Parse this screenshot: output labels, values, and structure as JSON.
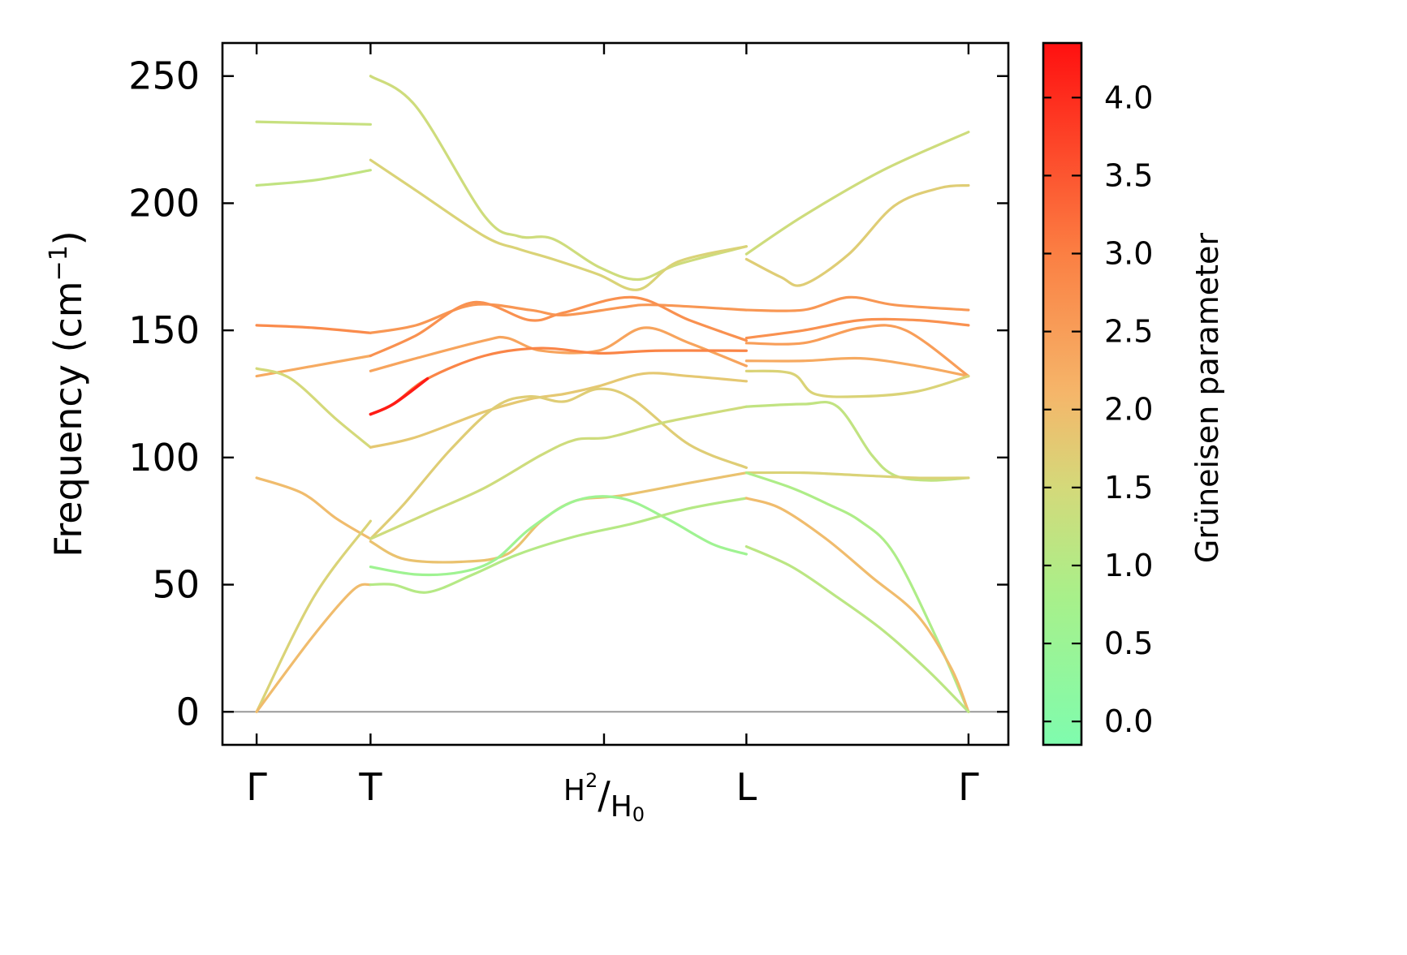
{
  "chart_data": {
    "type": "line",
    "title": "",
    "ylabel": "Frequency (cm",
    "ylabel_sup": "−1",
    "ylabel_close": ")",
    "ylim": [
      -13,
      263
    ],
    "yticks": [
      0,
      50,
      100,
      150,
      200,
      250
    ],
    "x_points": [
      {
        "pos": 0.0,
        "label": "Γ"
      },
      {
        "pos": 1.0,
        "label": "T"
      },
      {
        "pos": 3.05,
        "label": "H",
        "sub_upper": "2",
        "sep": "/",
        "label2": "H",
        "sub_lower": "0"
      },
      {
        "pos": 4.3,
        "label": "L"
      },
      {
        "pos": 6.25,
        "label": "Γ"
      }
    ],
    "xlim": [
      -0.3,
      6.6
    ],
    "zero_line_color": "#999999",
    "colorbar": {
      "label": "Grüneisen parameter",
      "range": [
        -0.15,
        4.35
      ],
      "ticks": [
        "0.0",
        "0.5",
        "1.0",
        "1.5",
        "2.0",
        "2.5",
        "3.0",
        "3.5",
        "4.0"
      ],
      "tick_values": [
        0.0,
        0.5,
        1.0,
        1.5,
        2.0,
        2.5,
        3.0,
        3.5,
        4.0
      ],
      "colors": [
        {
          "v": -0.15,
          "c": "#7ffcae"
        },
        {
          "v": 0.8,
          "c": "#a8f08a"
        },
        {
          "v": 1.5,
          "c": "#d4d97a"
        },
        {
          "v": 2.1,
          "c": "#f5b66a"
        },
        {
          "v": 3.0,
          "c": "#fb7f43"
        },
        {
          "v": 4.35,
          "c": "#ff1010"
        }
      ]
    },
    "series": [
      {
        "g": 1.3,
        "pts": [
          [
            0,
            232
          ],
          [
            1,
            231
          ]
        ]
      },
      {
        "g": 1.2,
        "pts": [
          [
            0,
            207
          ],
          [
            0.5,
            209
          ],
          [
            1,
            213
          ]
        ]
      },
      {
        "g": 2.8,
        "pts": [
          [
            0,
            152
          ],
          [
            0.5,
            151
          ],
          [
            1,
            149
          ]
        ]
      },
      {
        "g": 2.3,
        "pts": [
          [
            0,
            132
          ],
          [
            0.5,
            136
          ],
          [
            1,
            140
          ]
        ]
      },
      {
        "g": 1.5,
        "pts": [
          [
            0,
            135
          ],
          [
            0.3,
            131
          ],
          [
            0.7,
            115
          ],
          [
            1,
            104
          ]
        ]
      },
      {
        "g": 2.0,
        "pts": [
          [
            0,
            92
          ],
          [
            0.4,
            86
          ],
          [
            0.7,
            76
          ],
          [
            1,
            68
          ]
        ]
      },
      {
        "g": 1.6,
        "pts": [
          [
            0,
            0
          ],
          [
            0.5,
            45
          ],
          [
            1,
            75
          ]
        ]
      },
      {
        "g": 2.0,
        "pts": [
          [
            0,
            0
          ],
          [
            0.5,
            30
          ],
          [
            0.85,
            48
          ],
          [
            1,
            50
          ]
        ]
      },
      {
        "g": 1.4,
        "pts": [
          [
            1,
            250
          ],
          [
            1.4,
            238
          ],
          [
            2.0,
            195
          ],
          [
            2.3,
            187
          ],
          [
            2.6,
            186
          ],
          [
            3.0,
            175
          ],
          [
            3.35,
            170
          ],
          [
            3.7,
            176
          ],
          [
            4.3,
            183
          ]
        ]
      },
      {
        "g": 1.6,
        "pts": [
          [
            1,
            217
          ],
          [
            1.4,
            205
          ],
          [
            2.0,
            187
          ],
          [
            2.3,
            182
          ],
          [
            2.6,
            178
          ],
          [
            3.0,
            172
          ],
          [
            3.35,
            166
          ],
          [
            3.7,
            177
          ],
          [
            4.3,
            183
          ]
        ]
      },
      {
        "g": 2.6,
        "pts": [
          [
            1,
            149
          ],
          [
            1.4,
            152
          ],
          [
            1.9,
            160
          ],
          [
            2.4,
            158
          ],
          [
            2.7,
            156
          ],
          [
            3.2,
            159
          ],
          [
            3.5,
            160
          ],
          [
            4.3,
            158
          ]
        ]
      },
      {
        "g": 2.7,
        "pts": [
          [
            1,
            140
          ],
          [
            1.4,
            148
          ],
          [
            1.9,
            161
          ],
          [
            2.4,
            154
          ],
          [
            2.7,
            157
          ],
          [
            3.3,
            163
          ],
          [
            3.8,
            154
          ],
          [
            4.3,
            146
          ]
        ]
      },
      {
        "g": 2.4,
        "pts": [
          [
            1,
            134
          ],
          [
            1.4,
            139
          ],
          [
            2.0,
            146
          ],
          [
            2.2,
            147
          ],
          [
            2.5,
            142
          ],
          [
            3.0,
            142
          ],
          [
            3.4,
            151
          ],
          [
            3.8,
            145
          ],
          [
            4.3,
            136
          ]
        ]
      },
      {
        "g": 2.9,
        "pts": [
          [
            1,
            117
          ],
          [
            1.2,
            121
          ],
          [
            1.5,
            131
          ],
          [
            2.0,
            140
          ],
          [
            2.5,
            143
          ],
          [
            3.0,
            141
          ],
          [
            3.5,
            142
          ],
          [
            4.3,
            142
          ]
        ]
      },
      {
        "g": 1.8,
        "pts": [
          [
            1,
            104
          ],
          [
            1.4,
            108
          ],
          [
            2.0,
            118
          ],
          [
            2.4,
            123
          ],
          [
            2.7,
            125
          ],
          [
            3.0,
            128
          ],
          [
            3.4,
            133
          ],
          [
            3.8,
            132
          ],
          [
            4.3,
            130
          ]
        ]
      },
      {
        "g": 1.7,
        "pts": [
          [
            1,
            68
          ],
          [
            1.3,
            82
          ],
          [
            1.7,
            103
          ],
          [
            2.1,
            120
          ],
          [
            2.4,
            124
          ],
          [
            2.7,
            122
          ],
          [
            3.0,
            127
          ],
          [
            3.3,
            123
          ],
          [
            3.8,
            105
          ],
          [
            4.3,
            96
          ]
        ]
      },
      {
        "g": 1.4,
        "pts": [
          [
            1,
            68
          ],
          [
            1.5,
            78
          ],
          [
            2.0,
            88
          ],
          [
            2.5,
            101
          ],
          [
            2.8,
            107
          ],
          [
            3.1,
            108
          ],
          [
            3.6,
            114
          ],
          [
            4.3,
            120
          ]
        ]
      },
      {
        "g": 1.9,
        "pts": [
          [
            1,
            67
          ],
          [
            1.3,
            60
          ],
          [
            1.8,
            59
          ],
          [
            2.2,
            62
          ],
          [
            2.5,
            75
          ],
          [
            2.8,
            83
          ],
          [
            3.2,
            85
          ],
          [
            3.8,
            90
          ],
          [
            4.3,
            94
          ]
        ]
      },
      {
        "g": 0.6,
        "pts": [
          [
            1,
            57
          ],
          [
            1.4,
            54
          ],
          [
            1.8,
            55
          ],
          [
            2.1,
            60
          ],
          [
            2.4,
            72
          ],
          [
            2.8,
            83
          ],
          [
            3.2,
            84
          ],
          [
            3.6,
            76
          ],
          [
            4.0,
            66
          ],
          [
            4.3,
            62
          ]
        ]
      },
      {
        "g": 1.0,
        "pts": [
          [
            1,
            50
          ],
          [
            1.2,
            50
          ],
          [
            1.5,
            47
          ],
          [
            1.9,
            54
          ],
          [
            2.3,
            62
          ],
          [
            2.8,
            69
          ],
          [
            3.3,
            74
          ],
          [
            3.8,
            80
          ],
          [
            4.3,
            84
          ]
        ]
      },
      {
        "g": 2.6,
        "pts": [
          [
            4.3,
            158
          ],
          [
            4.8,
            158
          ],
          [
            5.2,
            163
          ],
          [
            5.6,
            160
          ],
          [
            6.25,
            158
          ]
        ]
      },
      {
        "g": 2.7,
        "pts": [
          [
            4.3,
            147
          ],
          [
            4.8,
            150
          ],
          [
            5.3,
            154
          ],
          [
            5.8,
            154
          ],
          [
            6.25,
            152
          ]
        ]
      },
      {
        "g": 2.5,
        "pts": [
          [
            4.3,
            145
          ],
          [
            4.8,
            145
          ],
          [
            5.3,
            151
          ],
          [
            5.7,
            150
          ],
          [
            6.25,
            132
          ]
        ]
      },
      {
        "g": 2.3,
        "pts": [
          [
            4.3,
            138
          ],
          [
            4.8,
            138
          ],
          [
            5.3,
            139
          ],
          [
            5.8,
            136
          ],
          [
            6.25,
            132
          ]
        ]
      },
      {
        "g": 1.6,
        "pts": [
          [
            4.3,
            134
          ],
          [
            4.7,
            133
          ],
          [
            4.9,
            125
          ],
          [
            5.3,
            124
          ],
          [
            5.8,
            126
          ],
          [
            6.25,
            132
          ]
        ]
      },
      {
        "g": 1.4,
        "pts": [
          [
            4.3,
            180
          ],
          [
            4.8,
            195
          ],
          [
            5.5,
            213
          ],
          [
            6.25,
            228
          ]
        ]
      },
      {
        "g": 1.7,
        "pts": [
          [
            4.3,
            178
          ],
          [
            4.6,
            171
          ],
          [
            4.8,
            168
          ],
          [
            5.2,
            180
          ],
          [
            5.6,
            199
          ],
          [
            6.0,
            206
          ],
          [
            6.25,
            207
          ]
        ]
      },
      {
        "g": 1.2,
        "pts": [
          [
            4.3,
            120
          ],
          [
            4.8,
            121
          ],
          [
            5.1,
            120
          ],
          [
            5.4,
            101
          ],
          [
            5.6,
            93
          ],
          [
            5.9,
            91
          ],
          [
            6.25,
            92
          ]
        ]
      },
      {
        "g": 1.6,
        "pts": [
          [
            4.3,
            94
          ],
          [
            4.8,
            94
          ],
          [
            5.3,
            93
          ],
          [
            5.8,
            92
          ],
          [
            6.25,
            92
          ]
        ]
      },
      {
        "g": 0.9,
        "pts": [
          [
            4.3,
            94
          ],
          [
            4.7,
            88
          ],
          [
            5.0,
            82
          ],
          [
            5.3,
            75
          ],
          [
            5.6,
            62
          ],
          [
            6.0,
            26
          ],
          [
            6.25,
            0
          ]
        ]
      },
      {
        "g": 2.0,
        "pts": [
          [
            4.3,
            84
          ],
          [
            4.6,
            80
          ],
          [
            5.0,
            68
          ],
          [
            5.4,
            53
          ],
          [
            5.8,
            38
          ],
          [
            6.1,
            17
          ],
          [
            6.25,
            0
          ]
        ]
      },
      {
        "g": 1.1,
        "pts": [
          [
            4.3,
            65
          ],
          [
            4.7,
            57
          ],
          [
            5.1,
            45
          ],
          [
            5.5,
            32
          ],
          [
            5.9,
            16
          ],
          [
            6.25,
            0
          ]
        ]
      }
    ]
  }
}
